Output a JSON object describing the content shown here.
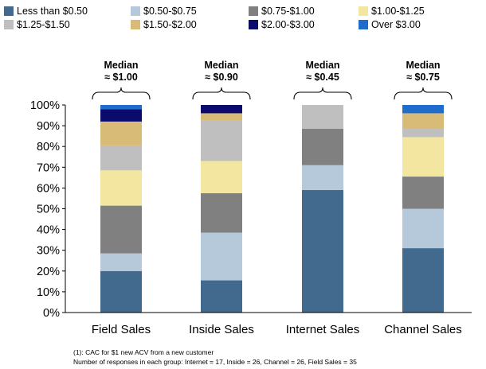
{
  "chart_data": {
    "type": "bar",
    "stacked": true,
    "categories": [
      "Field Sales",
      "Inside Sales",
      "Internet Sales",
      "Channel Sales"
    ],
    "series": [
      {
        "name": "Less than $0.50",
        "color": "#426a8e",
        "values": [
          20,
          15.5,
          59,
          31
        ]
      },
      {
        "name": "$0.50-$0.75",
        "color": "#b5c9db",
        "values": [
          8.5,
          23,
          12,
          19
        ]
      },
      {
        "name": "$0.75-$1.00",
        "color": "#808080",
        "values": [
          23,
          19,
          17.5,
          15.5
        ]
      },
      {
        "name": "$1.00-$1.25",
        "color": "#f2e6a0",
        "values": [
          17,
          15.5,
          0,
          19
        ]
      },
      {
        "name": "$1.25-$1.50",
        "color": "#bfbfbf",
        "values": [
          12,
          19.5,
          11.5,
          4
        ]
      },
      {
        "name": "$1.50-$2.00",
        "color": "#d9bb78",
        "values": [
          11.5,
          3.5,
          0,
          7.5
        ]
      },
      {
        "name": "$2.00-$3.00",
        "color": "#0b0b6e",
        "values": [
          6,
          4,
          0,
          0
        ]
      },
      {
        "name": "Over $3.00",
        "color": "#1f6ccc",
        "values": [
          2,
          0,
          0,
          4
        ]
      }
    ],
    "medians": [
      {
        "label": "Median",
        "value": "≈ $1.00"
      },
      {
        "label": "Median",
        "value": "≈ $0.90"
      },
      {
        "label": "Median",
        "value": "≈ $0.45"
      },
      {
        "label": "Median",
        "value": "≈ $0.75"
      }
    ],
    "yticks": [
      "0%",
      "10%",
      "20%",
      "30%",
      "40%",
      "50%",
      "60%",
      "70%",
      "80%",
      "90%",
      "100%"
    ],
    "ylim": [
      0,
      100
    ],
    "ylabel": "",
    "xlabel": "",
    "title": ""
  },
  "notes": [
    "(1): CAC for $1 new ACV from a new customer",
    "Number of responses in each group: Internet = 17, Inside = 26, Channel = 26, Field Sales = 35"
  ]
}
